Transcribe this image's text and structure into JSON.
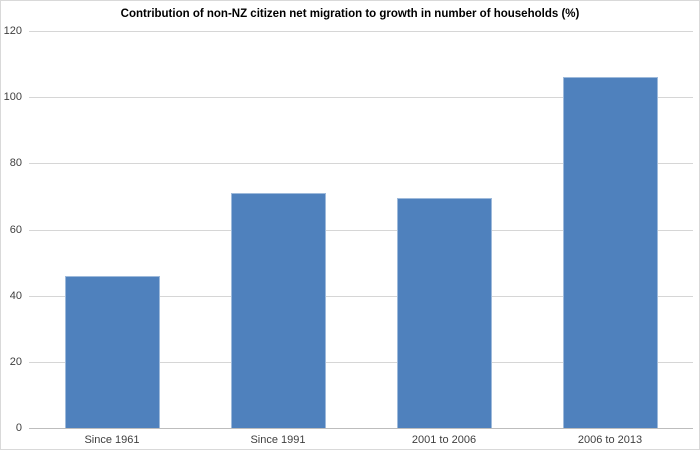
{
  "chart_data": {
    "type": "bar",
    "title": "Contribution of non-NZ citizen net migration to growth in number of households (%)",
    "xlabel": "",
    "ylabel": "",
    "categories": [
      "Since 1961",
      "Since 1991",
      "2001 to 2006",
      "2006 to 2013"
    ],
    "values": [
      46,
      71,
      69.5,
      106
    ],
    "yticks": [
      0,
      20,
      40,
      60,
      80,
      100,
      120
    ],
    "ylim": [
      0,
      120
    ],
    "grid": "horizontal",
    "legend_position": "none",
    "colors": {
      "bar_fill": "#4F81BD",
      "bar_edge": "rgba(255,255,255,0.45)",
      "gridline": "#D6D6D6",
      "axis_line": "#BDBDBD",
      "tick_text": "#3F3F3F",
      "title_text": "#000000",
      "background": "#FFFFFF",
      "chart_border": "#D9D9D9"
    }
  }
}
